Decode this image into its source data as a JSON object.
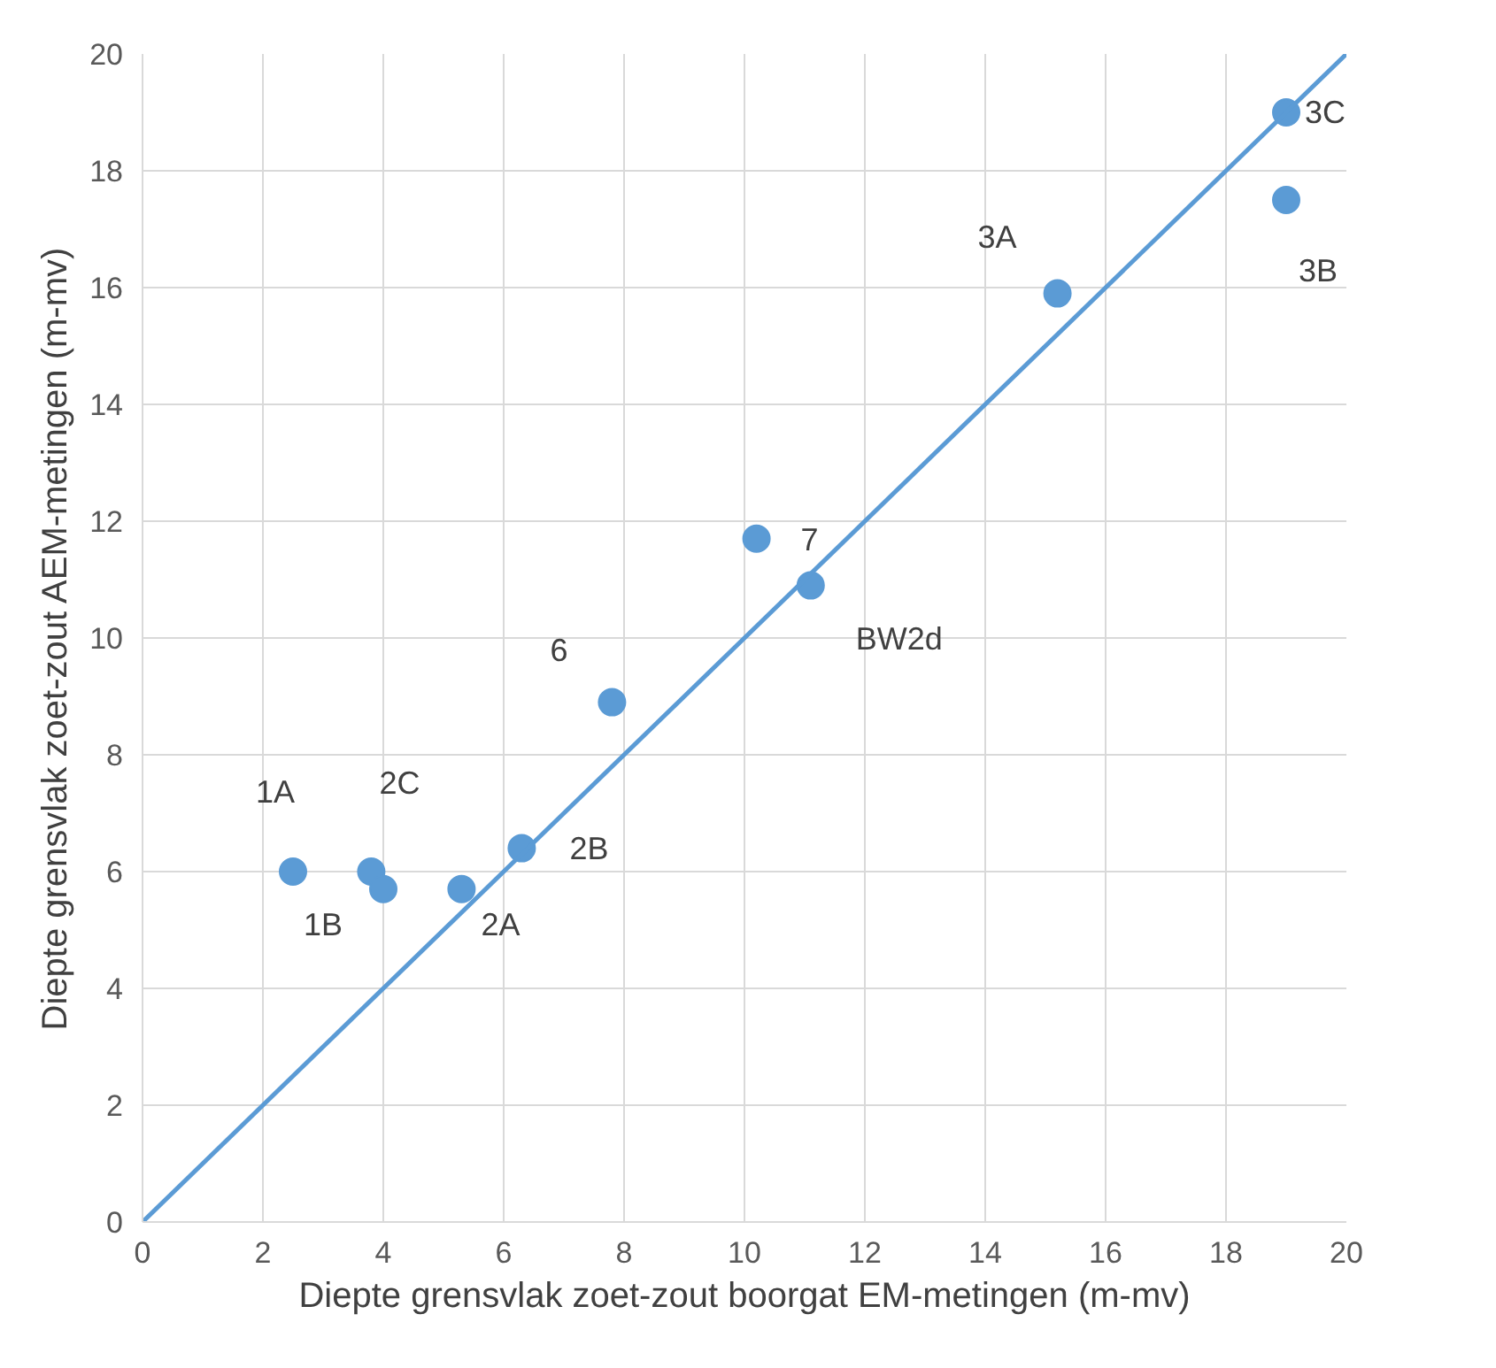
{
  "chart_data": {
    "type": "scatter",
    "xlabel": "Diepte grensvlak zoet-zout boorgat EM-metingen (m-mv)",
    "ylabel": "Diepte grensvlak zoet-zout AEM-metingen (m-mv)",
    "series": [
      {
        "color": "#5b9bd5",
        "x": [
          2.5,
          3.8,
          4.0,
          5.3,
          6.3,
          7.8,
          10.2,
          11.1,
          15.2,
          19.0,
          19.0
        ],
        "values": [
          6.0,
          6.0,
          5.7,
          5.7,
          6.4,
          8.9,
          11.7,
          10.9,
          15.9,
          19.0,
          17.5
        ]
      },
      {
        "type": "line",
        "color": "#5b9bd5",
        "marker": "none",
        "x": [
          0,
          20
        ],
        "values": [
          0,
          20
        ]
      }
    ],
    "annotations": [
      {
        "text": "1A",
        "x": 2.5,
        "y": 6.0
      },
      {
        "text": "2C",
        "x": 3.8,
        "y": 6.0
      },
      {
        "text": "1B",
        "x": 4.0,
        "y": 5.7
      },
      {
        "text": "2A",
        "x": 5.3,
        "y": 5.7
      },
      {
        "text": "2B",
        "x": 6.3,
        "y": 6.4
      },
      {
        "text": "6",
        "x": 7.8,
        "y": 8.9
      },
      {
        "text": "7",
        "x": 10.2,
        "y": 11.7
      },
      {
        "text": "BW2d",
        "x": 11.1,
        "y": 10.9
      },
      {
        "text": "3A",
        "x": 15.2,
        "y": 15.9
      },
      {
        "text": "3C",
        "x": 19.0,
        "y": 19.0
      },
      {
        "text": "3B",
        "x": 19.0,
        "y": 17.5
      }
    ],
    "xlim": [
      0,
      20
    ],
    "ylim": [
      0,
      20
    ],
    "xticks": [
      0,
      2,
      4,
      6,
      8,
      10,
      12,
      14,
      16,
      18,
      20
    ],
    "yticks": [
      0,
      2,
      4,
      6,
      8,
      10,
      12,
      14,
      16,
      18,
      20
    ],
    "grid": true,
    "marker": "circle"
  }
}
